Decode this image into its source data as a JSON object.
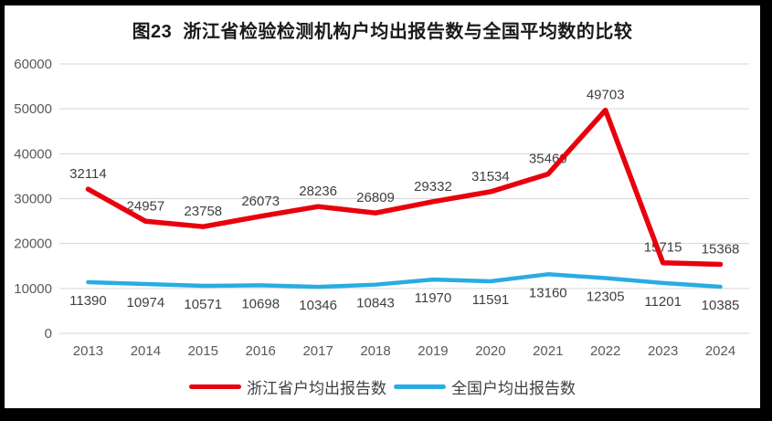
{
  "title": "图23  浙江省检验检测机构户均出报告数与全国平均数的比较",
  "chart_data": {
    "type": "line",
    "categories": [
      "2013",
      "2014",
      "2015",
      "2016",
      "2017",
      "2018",
      "2019",
      "2020",
      "2021",
      "2022",
      "2023",
      "2024"
    ],
    "series": [
      {
        "name": "浙江省户均出报告数",
        "color": "#e8000d",
        "label_position": "above",
        "values": [
          32114,
          24957,
          23758,
          26073,
          28236,
          26809,
          29332,
          31534,
          35460,
          49703,
          15715,
          15368
        ]
      },
      {
        "name": "全国户均出报告数",
        "color": "#29ace3",
        "label_position": "below",
        "values": [
          11390,
          10974,
          10571,
          10698,
          10346,
          10843,
          11970,
          11591,
          13160,
          12305,
          11201,
          10385
        ]
      }
    ],
    "ylim": [
      0,
      60000
    ],
    "yticks": [
      0,
      10000,
      20000,
      30000,
      40000,
      50000,
      60000
    ],
    "grid": "horizontal",
    "gridline_color": "#d6d6d6",
    "axis_label_color": "#595959",
    "data_label_color": "#3f3f3f",
    "legend_position": "bottom",
    "background": "#ffffff",
    "frame_color": "#000000"
  }
}
